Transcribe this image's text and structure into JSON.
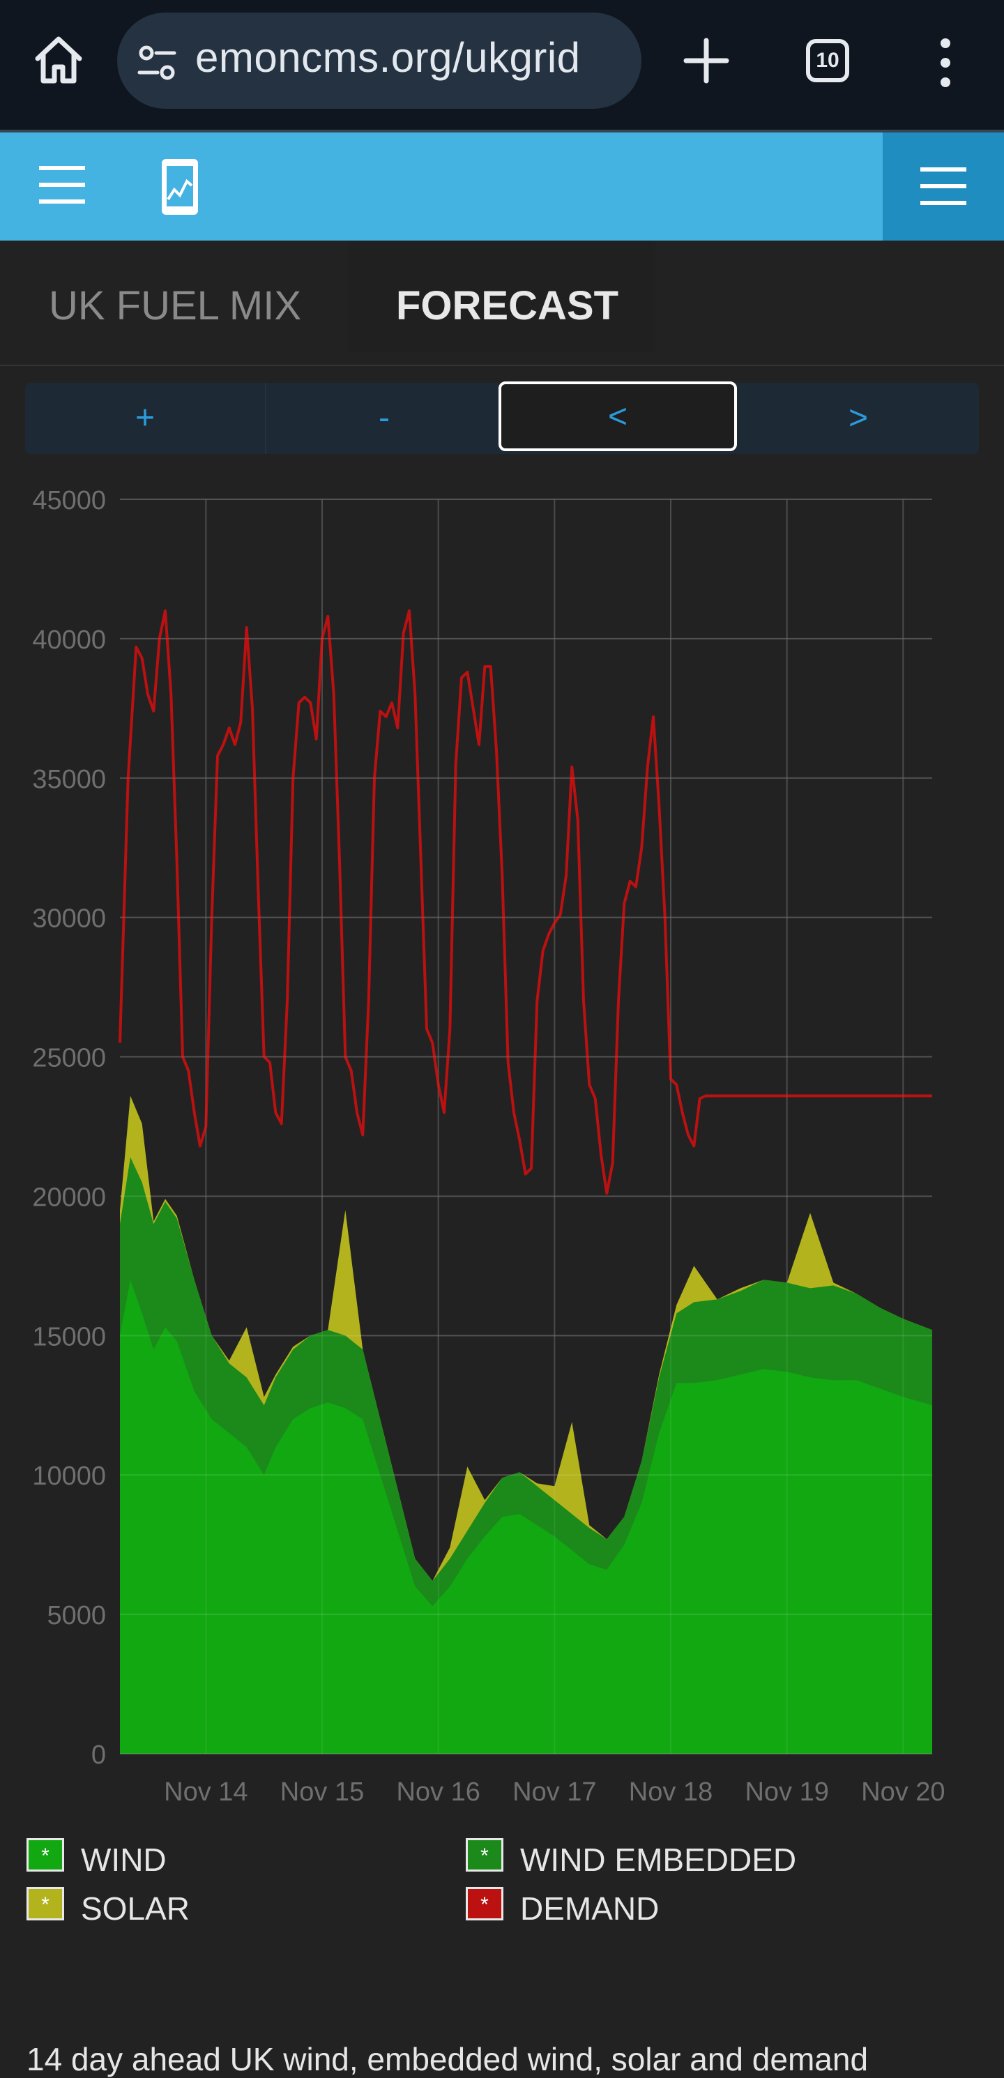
{
  "browser": {
    "url": "emoncms.org/ukgrid",
    "tab_count": "10",
    "icons": [
      "home-icon",
      "site-settings-icon",
      "plus-icon",
      "tab-switcher-icon",
      "more-vert-icon"
    ]
  },
  "header": {
    "icons": [
      "menu-icon",
      "app-logo-icon",
      "menu-icon"
    ],
    "accent_color": "#44b3e2",
    "right_box_color": "#1f8dbf"
  },
  "tabs": [
    {
      "label": "UK FUEL MIX",
      "active": false
    },
    {
      "label": "FORECAST",
      "active": true
    }
  ],
  "nav": {
    "zoom_in": "+",
    "zoom_out": "-",
    "prev": "<",
    "next": ">"
  },
  "chart_data": {
    "type": "area",
    "y_ticks": [
      "0",
      "5000",
      "10000",
      "15000",
      "20000",
      "25000",
      "30000",
      "35000",
      "40000",
      "45000"
    ],
    "x_ticks": [
      "Nov 14",
      "Nov 15",
      "Nov 16",
      "Nov 17",
      "Nov 18",
      "Nov 19",
      "Nov 20"
    ],
    "x_tick_positions_days": [
      14,
      15,
      16,
      17,
      18,
      19,
      20
    ],
    "ylim": [
      0,
      45000
    ],
    "xlim_days": [
      13.26,
      20.25
    ],
    "grid": true,
    "series": [
      {
        "name": "WIND",
        "color": "#11a811",
        "x": [
          13.26,
          13.35,
          13.45,
          13.55,
          13.65,
          13.75,
          13.9,
          14.05,
          14.2,
          14.35,
          14.5,
          14.6,
          14.75,
          14.9,
          15.05,
          15.2,
          15.35,
          15.5,
          15.65,
          15.8,
          15.95,
          16.1,
          16.25,
          16.4,
          16.55,
          16.7,
          16.85,
          17.0,
          17.15,
          17.3,
          17.45,
          17.6,
          17.75,
          17.9,
          18.05,
          18.2,
          18.4,
          18.6,
          18.8,
          19.0,
          19.2,
          19.4,
          19.6,
          19.8,
          20.0,
          20.25
        ],
        "values": [
          15000,
          17000,
          15800,
          14500,
          15300,
          14800,
          13000,
          12000,
          11500,
          11000,
          10000,
          11000,
          12000,
          12400,
          12600,
          12400,
          12000,
          10000,
          8000,
          6000,
          5300,
          6000,
          7000,
          7800,
          8500,
          8600,
          8200,
          7800,
          7300,
          6800,
          6600,
          7500,
          9000,
          11500,
          13300,
          13300,
          13400,
          13600,
          13800,
          13700,
          13500,
          13400,
          13400,
          13100,
          12800,
          12500
        ]
      },
      {
        "name": "WIND EMBEDDED",
        "color": "#1b8a1b",
        "x": [
          13.26,
          13.35,
          13.45,
          13.55,
          13.65,
          13.75,
          13.9,
          14.05,
          14.2,
          14.35,
          14.5,
          14.6,
          14.75,
          14.9,
          15.05,
          15.2,
          15.35,
          15.5,
          15.65,
          15.8,
          15.95,
          16.1,
          16.25,
          16.4,
          16.55,
          16.7,
          16.85,
          17.0,
          17.15,
          17.3,
          17.45,
          17.6,
          17.75,
          17.9,
          18.05,
          18.2,
          18.4,
          18.6,
          18.8,
          19.0,
          19.2,
          19.4,
          19.6,
          19.8,
          20.0,
          20.25
        ],
        "values": [
          19000,
          21400,
          20500,
          19000,
          19800,
          19200,
          17000,
          15000,
          14000,
          13500,
          12500,
          13500,
          14500,
          15000,
          15200,
          15000,
          14500,
          12000,
          9500,
          7000,
          6200,
          7000,
          8000,
          9000,
          9900,
          10100,
          9600,
          9100,
          8600,
          8100,
          7700,
          8500,
          10500,
          13500,
          15800,
          16200,
          16300,
          16600,
          17000,
          16900,
          16700,
          16800,
          16500,
          16000,
          15600,
          15200
        ]
      },
      {
        "name": "SOLAR",
        "color": "#b3b31e",
        "x": [
          13.26,
          13.35,
          13.45,
          13.55,
          13.65,
          13.75,
          13.9,
          14.05,
          14.2,
          14.35,
          14.5,
          14.6,
          14.75,
          14.9,
          15.05,
          15.2,
          15.35,
          15.5,
          15.65,
          15.8,
          15.95,
          16.1,
          16.25,
          16.4,
          16.55,
          16.7,
          16.85,
          17.0,
          17.15,
          17.3,
          17.45,
          17.6,
          17.75,
          17.9,
          18.05,
          18.2,
          18.4,
          18.6,
          18.8,
          19.0,
          19.2,
          19.4,
          19.6,
          19.8,
          20.0,
          20.25
        ],
        "values": [
          19500,
          23600,
          22600,
          19100,
          19900,
          19300,
          17000,
          15000,
          14100,
          15300,
          12800,
          13600,
          14600,
          15000,
          15200,
          19500,
          14500,
          12000,
          9500,
          7000,
          6200,
          7400,
          10300,
          9100,
          9900,
          10100,
          9700,
          9600,
          11900,
          8200,
          7700,
          8500,
          10500,
          13600,
          16100,
          17500,
          16300,
          16700,
          17000,
          16900,
          19400,
          16900,
          16500,
          16000,
          15600,
          15200
        ]
      },
      {
        "name": "DEMAND",
        "color": "#bb1111",
        "x": [
          13.26,
          13.33,
          13.4,
          13.45,
          13.5,
          13.55,
          13.6,
          13.65,
          13.7,
          13.75,
          13.8,
          13.85,
          13.9,
          13.95,
          14.0,
          14.05,
          14.1,
          14.15,
          14.2,
          14.25,
          14.3,
          14.35,
          14.4,
          14.45,
          14.5,
          14.55,
          14.6,
          14.65,
          14.7,
          14.75,
          14.8,
          14.85,
          14.9,
          14.95,
          15.0,
          15.05,
          15.1,
          15.15,
          15.2,
          15.25,
          15.3,
          15.35,
          15.4,
          15.45,
          15.5,
          15.55,
          15.6,
          15.65,
          15.7,
          15.75,
          15.8,
          15.85,
          15.9,
          15.95,
          16.0,
          16.05,
          16.1,
          16.15,
          16.2,
          16.25,
          16.3,
          16.35,
          16.4,
          16.45,
          16.5,
          16.55,
          16.6,
          16.65,
          16.7,
          16.75,
          16.8,
          16.85,
          16.9,
          16.95,
          17.0,
          17.05,
          17.1,
          17.15,
          17.2,
          17.25,
          17.3,
          17.35,
          17.4,
          17.45,
          17.5,
          17.55,
          17.6,
          17.65,
          17.7,
          17.75,
          17.8,
          17.85,
          17.9,
          17.95,
          18.0,
          18.05,
          18.1,
          18.15,
          18.2,
          18.25,
          18.3,
          18.35,
          18.4,
          18.45,
          18.5,
          18.55,
          18.6,
          18.65,
          18.7,
          18.75,
          18.8,
          18.85,
          18.9,
          18.95,
          19.0,
          19.05,
          19.1,
          19.15,
          19.2,
          19.25,
          19.3,
          19.35,
          19.4,
          19.45,
          19.5,
          19.55,
          19.6,
          19.65,
          19.7,
          19.75,
          19.8,
          19.85,
          19.9,
          19.95,
          20.0,
          20.05,
          20.1,
          20.15,
          20.2,
          20.25
        ],
        "values": [
          25500,
          35000,
          39700,
          39300,
          38000,
          37400,
          40000,
          41000,
          38000,
          32000,
          25000,
          24500,
          23000,
          21800,
          22500,
          30000,
          35800,
          36200,
          36800,
          36200,
          37000,
          40400,
          37500,
          31000,
          25000,
          24800,
          23000,
          22600,
          27000,
          35000,
          37700,
          37900,
          37700,
          36400,
          40000,
          40800,
          38000,
          32000,
          25000,
          24500,
          23000,
          22200,
          27000,
          35000,
          37400,
          37200,
          37700,
          36800,
          40200,
          41000,
          38000,
          32000,
          26000,
          25500,
          24000,
          23000,
          26000,
          35500,
          38600,
          38800,
          37500,
          36200,
          39000,
          39000,
          36000,
          31500,
          24800,
          23000,
          22000,
          20800,
          21000,
          27000,
          28800,
          29400,
          29800,
          30100,
          31500,
          35400,
          33500,
          27000,
          24000,
          23500,
          21500,
          20100,
          21200,
          27000,
          30500,
          31300,
          31100,
          32500,
          35400,
          37200,
          34000,
          30000,
          24200,
          24000,
          23000,
          22200,
          21800,
          23500,
          23600,
          23600,
          23600,
          23600,
          23600,
          23600,
          23600,
          23600,
          23600,
          23600,
          23600,
          23600,
          23600,
          23600,
          23600,
          23600,
          23600,
          23600,
          23600,
          23600,
          23600,
          23600,
          23600,
          23600,
          23600,
          23600,
          23600,
          23600,
          23600,
          23600,
          23600,
          23600,
          23600,
          23600,
          23600,
          23600,
          23600,
          23600,
          23600,
          23600
        ]
      }
    ]
  },
  "legend": [
    {
      "label": "WIND",
      "color": "#11a811"
    },
    {
      "label": "WIND EMBEDDED",
      "color": "#1b8a1b"
    },
    {
      "label": "SOLAR",
      "color": "#b3b31e"
    },
    {
      "label": "DEMAND",
      "color": "#bb1111"
    }
  ],
  "legend_marker": "*",
  "description": "14 day ahead UK wind, embedded wind, solar and demand"
}
